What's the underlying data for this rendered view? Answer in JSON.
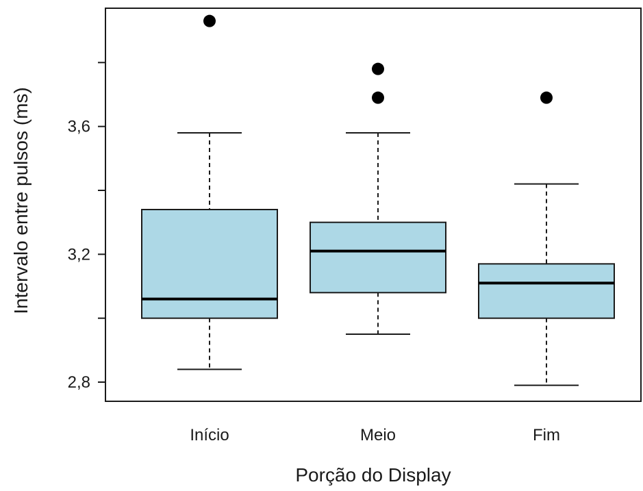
{
  "chart_data": {
    "type": "box",
    "title": "",
    "xlabel": "Porção do Display",
    "ylabel": "Intervalo entre pulsos (ms)",
    "ylim": [
      2.74,
      3.97
    ],
    "yticks": [
      2.8,
      3.0,
      3.2,
      3.4,
      3.6,
      3.8
    ],
    "ytick_labels": [
      "2,8",
      "",
      "3,2",
      "",
      "3,6",
      ""
    ],
    "grid": false,
    "box_fill": "#add8e6",
    "box_stroke": "#1a1a1a",
    "categories": [
      "Início",
      "Meio",
      "Fim"
    ],
    "boxes": [
      {
        "category": "Início",
        "whisker_low": 2.84,
        "q1": 3.0,
        "median": 3.06,
        "q3": 3.34,
        "whisker_high": 3.58,
        "outliers": [
          3.93
        ]
      },
      {
        "category": "Meio",
        "whisker_low": 2.95,
        "q1": 3.08,
        "median": 3.21,
        "q3": 3.3,
        "whisker_high": 3.58,
        "outliers": [
          3.78,
          3.69
        ]
      },
      {
        "category": "Fim",
        "whisker_low": 2.79,
        "q1": 3.0,
        "median": 3.11,
        "q3": 3.17,
        "whisker_high": 3.42,
        "outliers": [
          3.69
        ]
      }
    ]
  }
}
